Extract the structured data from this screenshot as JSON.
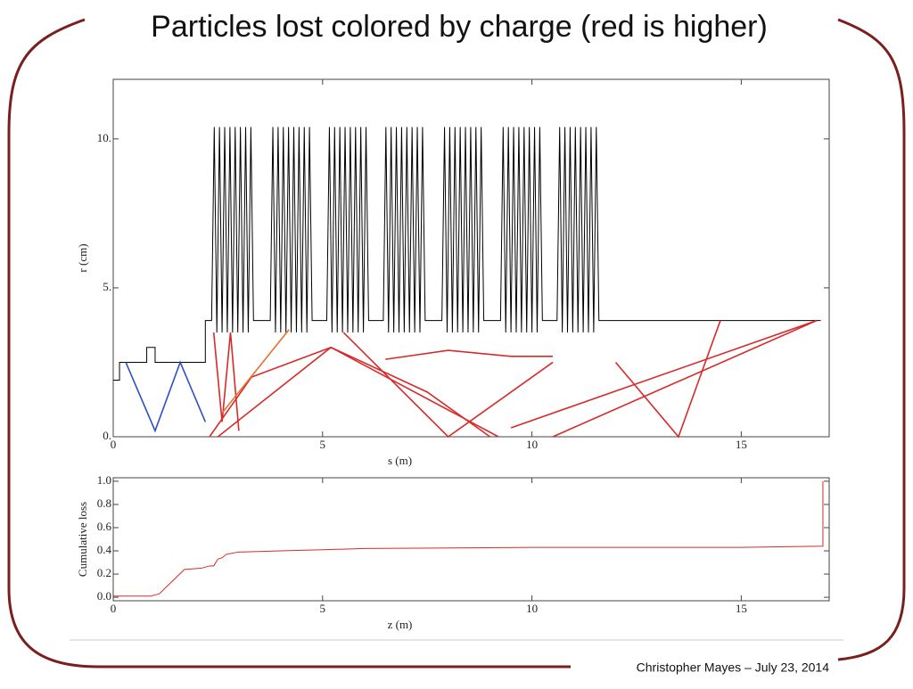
{
  "title": "Particles lost colored by charge (red is higher)",
  "footer": "Christopher Mayes – July 23, 2014",
  "chart_data": [
    {
      "type": "line",
      "x_label": "s (m)",
      "y_label": "r (cm)",
      "xlim": [
        0,
        17.1
      ],
      "xticks": [
        0,
        5,
        10,
        15
      ],
      "ylim": [
        0,
        12
      ],
      "yticks": [
        {
          "value": 0,
          "label": "0."
        },
        {
          "value": 5,
          "label": "5."
        },
        {
          "value": 10,
          "label": "10."
        }
      ],
      "series": [
        {
          "color": "#000000",
          "x": [
            0,
            0.15,
            0.15,
            0.8,
            0.8,
            1.0,
            1.0,
            2.2,
            2.2,
            2.35,
            2.4125,
            2.475,
            2.5375,
            2.6,
            2.6625,
            2.725,
            2.7875,
            2.85,
            2.9125,
            2.975,
            3.0375,
            3.1,
            3.1625,
            3.225,
            3.2875,
            3.35,
            3.75,
            3.8125,
            3.875,
            3.9375,
            4,
            4.0625,
            4.125,
            4.1875,
            4.25,
            4.3125,
            4.375,
            4.4375,
            4.5,
            4.5625,
            4.625,
            4.6875,
            4.75,
            5.1,
            5.1625,
            5.225,
            5.2875,
            5.35,
            5.4125,
            5.475,
            5.5375,
            5.6,
            5.6625,
            5.725,
            5.7875,
            5.85,
            5.9125,
            5.975,
            6.0375,
            6.1,
            6.45,
            6.5125,
            6.575,
            6.6375,
            6.7,
            6.7625,
            6.825,
            6.8875,
            6.95,
            7.0125,
            7.075,
            7.1375,
            7.2,
            7.2625,
            7.325,
            7.3875,
            7.45,
            7.85,
            7.9125,
            7.975,
            8.0375,
            8.1,
            8.1625,
            8.225,
            8.2875,
            8.35,
            8.4125,
            8.475,
            8.5375,
            8.6,
            8.6625,
            8.725,
            8.7875,
            8.85,
            9.25,
            9.3125,
            9.375,
            9.4375,
            9.5,
            9.5625,
            9.625,
            9.6875,
            9.75,
            9.8125,
            9.875,
            9.9375,
            10,
            10.0625,
            10.125,
            10.1875,
            10.25,
            10.6,
            10.6625,
            10.725,
            10.7875,
            10.85,
            10.9125,
            10.975,
            11.0375,
            11.1,
            11.1625,
            11.225,
            11.2875,
            11.35,
            11.4125,
            11.475,
            11.5375,
            11.6,
            16.9
          ],
          "values": [
            1.9,
            1.9,
            2.5,
            2.5,
            3.0,
            3.0,
            2.5,
            2.5,
            3.9,
            3.9,
            10.4,
            3.5,
            10.4,
            3.5,
            10.4,
            3.5,
            10.4,
            3.5,
            10.4,
            3.5,
            10.4,
            3.5,
            10.4,
            3.5,
            10.4,
            3.9,
            3.9,
            10.4,
            3.5,
            10.4,
            3.5,
            10.4,
            3.5,
            10.4,
            3.5,
            10.4,
            3.5,
            10.4,
            3.5,
            10.4,
            3.5,
            10.4,
            3.9,
            3.9,
            10.4,
            3.5,
            10.4,
            3.5,
            10.4,
            3.5,
            10.4,
            3.5,
            10.4,
            3.5,
            10.4,
            3.5,
            10.4,
            3.5,
            10.4,
            3.9,
            3.9,
            10.4,
            3.5,
            10.4,
            3.5,
            10.4,
            3.5,
            10.4,
            3.5,
            10.4,
            3.5,
            10.4,
            3.5,
            10.4,
            3.5,
            10.4,
            3.9,
            3.9,
            10.4,
            3.5,
            10.4,
            3.5,
            10.4,
            3.5,
            10.4,
            3.5,
            10.4,
            3.5,
            10.4,
            3.5,
            10.4,
            3.5,
            10.4,
            3.9,
            3.9,
            10.4,
            3.5,
            10.4,
            3.5,
            10.4,
            3.5,
            10.4,
            3.5,
            10.4,
            3.5,
            10.4,
            3.5,
            10.4,
            3.5,
            10.4,
            3.9,
            3.9,
            10.4,
            3.5,
            10.4,
            3.5,
            10.4,
            3.5,
            10.4,
            3.5,
            10.4,
            3.5,
            10.4,
            3.5,
            10.4,
            3.5,
            10.4,
            3.9,
            3.9
          ]
        },
        {
          "color": "#d82a2a",
          "x": [
            2.3,
            3.3,
            5.2,
            7.5,
            9.0
          ],
          "values": [
            0,
            2.0,
            3.0,
            1.5,
            0
          ]
        },
        {
          "color": "#d82a2a",
          "x": [
            2.5,
            5.2,
            9.2
          ],
          "values": [
            0,
            3.0,
            0
          ]
        },
        {
          "color": "#d82a2a",
          "x": [
            9.5,
            16.8
          ],
          "values": [
            0.3,
            3.9
          ]
        },
        {
          "color": "#d82a2a",
          "x": [
            10.5,
            16.8
          ],
          "values": [
            0,
            3.9
          ]
        },
        {
          "color": "#d82a2a",
          "x": [
            12.0,
            13.5,
            14.5
          ],
          "values": [
            2.5,
            0,
            3.9
          ]
        },
        {
          "color": "#d82a2a",
          "x": [
            5.5,
            8.0,
            10.5
          ],
          "values": [
            3.5,
            0,
            2.5
          ]
        },
        {
          "color": "#d82a2a",
          "x": [
            6.5,
            8.0,
            9.5,
            10.5
          ],
          "values": [
            2.6,
            2.9,
            2.7,
            2.7
          ]
        },
        {
          "color": "#d82a2a",
          "x": [
            2.4,
            2.6,
            2.8,
            3.0
          ],
          "values": [
            3.5,
            0.5,
            3.5,
            0.2
          ]
        },
        {
          "color": "#e8702a",
          "x": [
            2.6,
            4.2
          ],
          "values": [
            0.8,
            3.6
          ]
        },
        {
          "color": "#3050c0",
          "x": [
            0.3,
            1.0,
            1.6,
            2.2
          ],
          "values": [
            2.5,
            0.2,
            2.5,
            0.5
          ]
        }
      ]
    },
    {
      "type": "line",
      "x_label": "z (m)",
      "y_label": "Cumulative loss",
      "xlim": [
        0,
        17.1
      ],
      "xticks": [
        0,
        5,
        10,
        15
      ],
      "ylim": [
        -0.03,
        1.03
      ],
      "yticks": [
        {
          "value": 0,
          "label": "0.0"
        },
        0.2,
        0.4,
        0.6,
        0.8,
        {
          "value": 1,
          "label": "1.0"
        }
      ],
      "series": [
        {
          "color": "#d82a2a",
          "x": [
            0,
            0.9,
            1.1,
            1.3,
            1.7,
            2.1,
            2.3,
            2.4,
            2.5,
            2.6,
            2.7,
            3.0,
            4,
            5,
            6,
            10,
            15,
            16.95,
            16.95
          ],
          "values": [
            0.01,
            0.01,
            0.03,
            0.1,
            0.24,
            0.25,
            0.27,
            0.27,
            0.33,
            0.34,
            0.37,
            0.39,
            0.4,
            0.41,
            0.42,
            0.43,
            0.43,
            0.44,
            1.0
          ]
        }
      ]
    }
  ]
}
